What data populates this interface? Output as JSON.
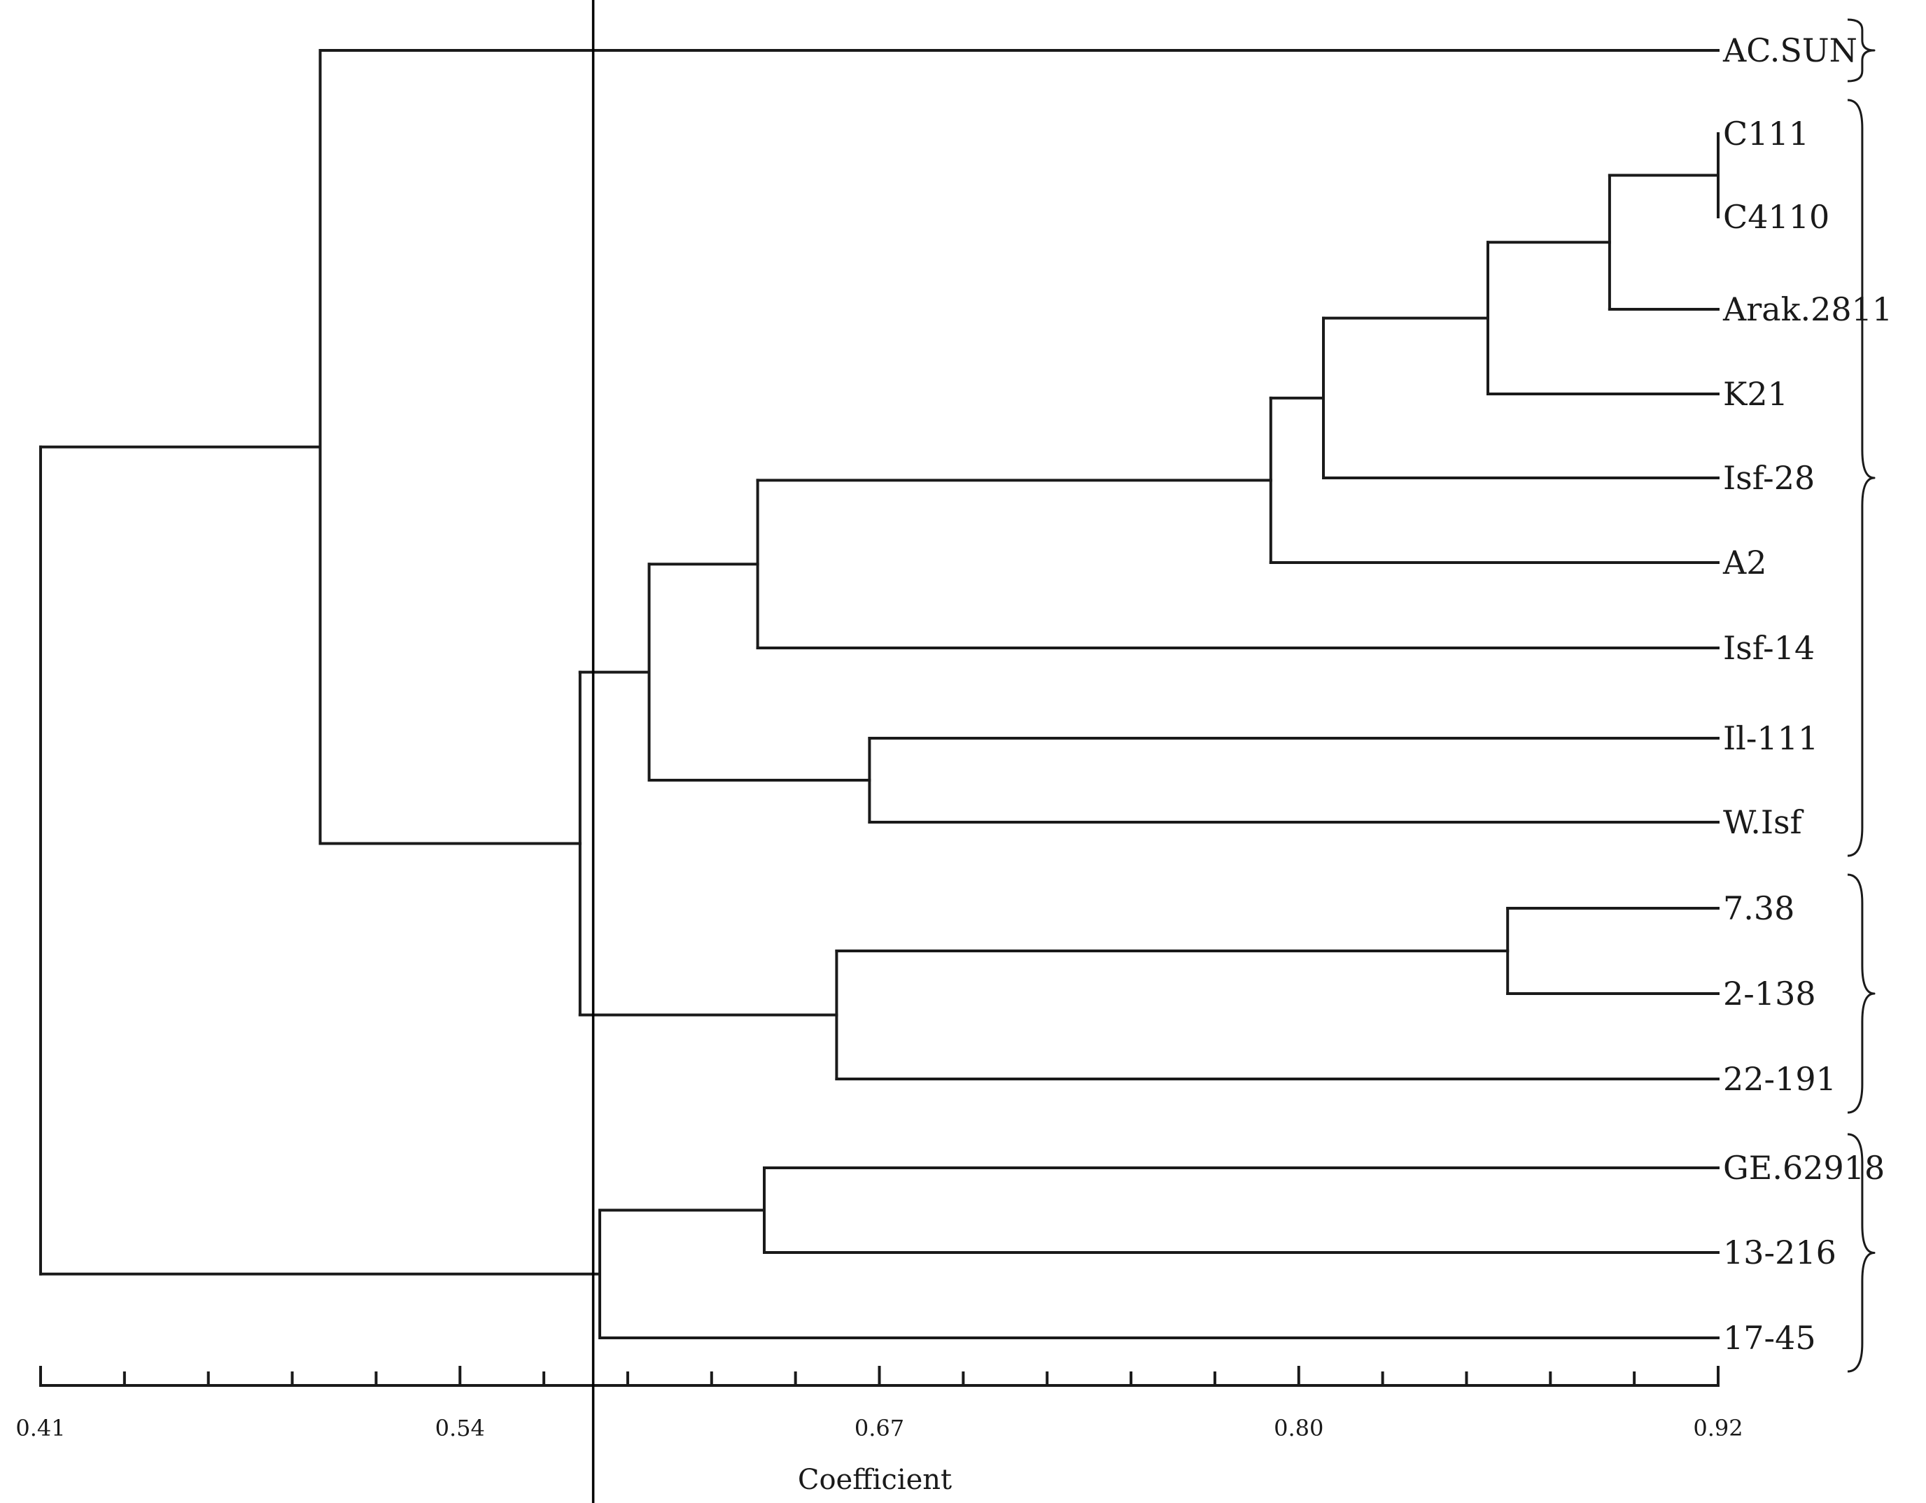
{
  "chart_data": {
    "type": "dendrogram",
    "axis": {
      "label": "Coefficient",
      "range": [
        0.41,
        0.92
      ],
      "tick_labels": [
        "0.41",
        "0.54",
        "0.67",
        "0.80",
        "0.92"
      ],
      "minor_ticks": 20
    },
    "cut_line": 0.578,
    "leaves": [
      "AC.SUN",
      "C111",
      "C4110",
      "Arak.2811",
      "K21",
      "Isf-28",
      "A2",
      "Isf-14",
      "Il-111",
      "W.Isf",
      "7.38",
      "2-138",
      "22-191",
      "GE.62918",
      "13-216",
      "17-45"
    ],
    "merges": [
      {
        "children": [
          "C111",
          "C4110"
        ],
        "coefficient": 0.92
      },
      {
        "children": [
          1,
          "Arak.2811"
        ],
        "coefficient": 0.887
      },
      {
        "children": [
          2,
          "K21"
        ],
        "coefficient": 0.85
      },
      {
        "children": [
          3,
          "Isf-28"
        ],
        "coefficient": 0.8
      },
      {
        "children": [
          4,
          "A2"
        ],
        "coefficient": 0.784
      },
      {
        "children": [
          5,
          "Isf-14"
        ],
        "coefficient": 0.628
      },
      {
        "children": [
          "Il-111",
          "W.Isf"
        ],
        "coefficient": 0.662
      },
      {
        "children": [
          6,
          7
        ],
        "coefficient": 0.595
      },
      {
        "children": [
          "7.38",
          "2-138"
        ],
        "coefficient": 0.856
      },
      {
        "children": [
          9,
          "22-191"
        ],
        "coefficient": 0.652
      },
      {
        "children": [
          8,
          10
        ],
        "coefficient": 0.574
      },
      {
        "children": [
          11,
          "AC.SUN"
        ],
        "coefficient": 0.495
      },
      {
        "children": [
          "GE.62918",
          "13-216"
        ],
        "coefficient": 0.63
      },
      {
        "children": [
          13,
          "17-45"
        ],
        "coefficient": 0.58
      },
      {
        "children": [
          12,
          14
        ],
        "coefficient": 0.41
      }
    ],
    "groups": [
      {
        "members": [
          "AC.SUN"
        ]
      },
      {
        "members": [
          "C111",
          "C4110",
          "Arak.2811",
          "K21",
          "Isf-28",
          "A2",
          "Isf-14",
          "Il-111",
          "W.Isf"
        ]
      },
      {
        "members": [
          "7.38",
          "2-138",
          "22-191"
        ]
      },
      {
        "members": [
          "GE.62918",
          "13-216",
          "17-45"
        ]
      }
    ]
  }
}
